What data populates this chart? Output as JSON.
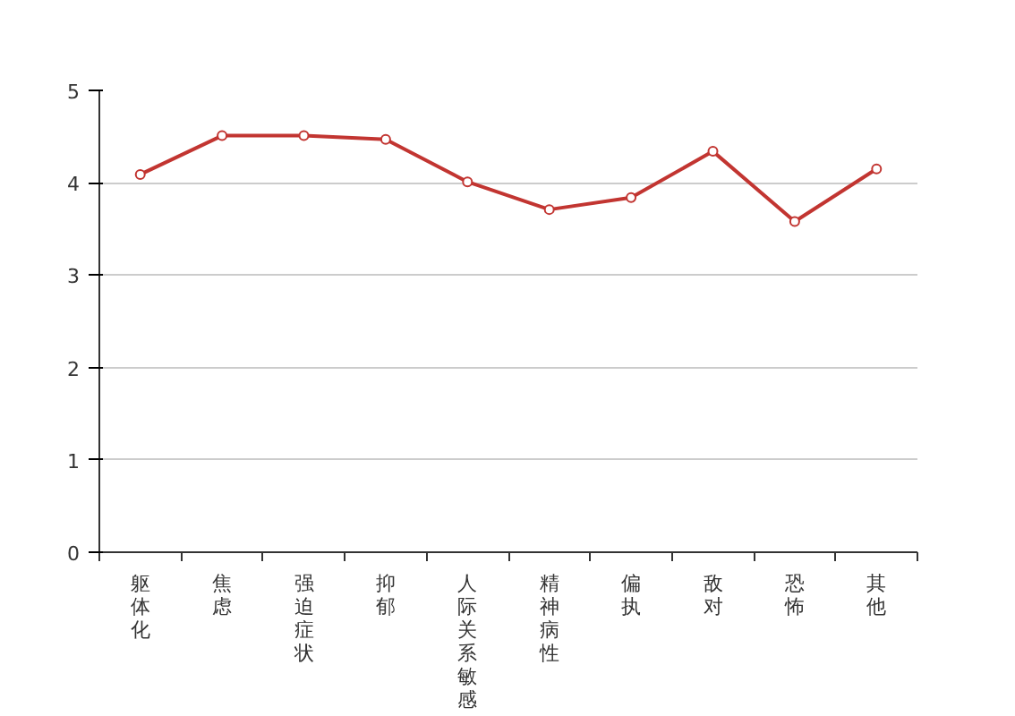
{
  "chart_data": {
    "type": "line",
    "categories": [
      "躯体化",
      "焦虑",
      "强迫症状",
      "抑郁",
      "人际关系敏感",
      "精神病性",
      "偏执",
      "敌对",
      "恐怖",
      "其他"
    ],
    "series": [
      {
        "color": "#c23531",
        "values": [
          4.09,
          4.51,
          4.51,
          4.47,
          4.01,
          3.71,
          3.84,
          4.34,
          3.58,
          4.15
        ]
      }
    ],
    "ylim": [
      0,
      5
    ],
    "yticks": [
      0,
      1,
      2,
      3,
      4,
      5
    ],
    "grid": "y",
    "marker": "circle",
    "line_style": "solid"
  }
}
